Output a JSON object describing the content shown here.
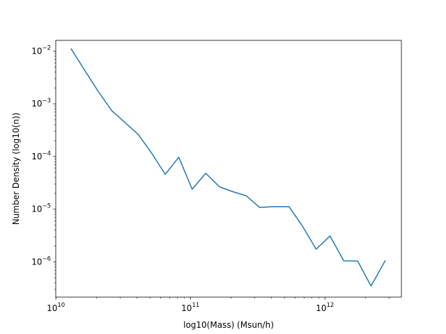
{
  "chart_data": {
    "type": "line",
    "title": "",
    "xlabel": "log10(Mass) (Msun/h)",
    "ylabel": "Number Density (log10(n))",
    "xscale": "log",
    "yscale": "log",
    "xlim": [
      9980000000.0,
      3700000000000.0
    ],
    "ylim": [
      2.15e-07,
      0.016
    ],
    "grid": false,
    "legend": "none",
    "x_ticks": [
      {
        "value": 10000000000.0,
        "base": "10",
        "exp": "10"
      },
      {
        "value": 100000000000.0,
        "base": "10",
        "exp": "11"
      },
      {
        "value": 1000000000000.0,
        "base": "10",
        "exp": "12"
      }
    ],
    "y_ticks": [
      {
        "value": 0.01,
        "base": "10",
        "exp": "−2"
      },
      {
        "value": 0.001,
        "base": "10",
        "exp": "−3"
      },
      {
        "value": 0.0001,
        "base": "10",
        "exp": "−4"
      },
      {
        "value": 1e-05,
        "base": "10",
        "exp": "−5"
      },
      {
        "value": 1e-06,
        "base": "10",
        "exp": "−6"
      }
    ],
    "series": [
      {
        "color": "#1f77b4",
        "x": [
          13000000000.0,
          16500000000.0,
          20700000000.0,
          26000000000.0,
          32700000000.0,
          41100000000.0,
          51600000000.0,
          65000000000.0,
          82000000000.0,
          103000000000.0,
          130000000000.0,
          165000000000.0,
          207000000000.0,
          260000000000.0,
          327000000000.0,
          411000000000.0,
          540000000000.0,
          680000000000.0,
          860000000000.0,
          1090000000000.0,
          1380000000000.0,
          1750000000000.0,
          2200000000000.0,
          2800000000000.0
        ],
        "y": [
          0.011,
          0.0042,
          0.0017,
          0.00074,
          0.00044,
          0.00026,
          0.000115,
          4.6e-05,
          9.7e-05,
          2.4e-05,
          4.8e-05,
          2.65e-05,
          2.15e-05,
          1.8e-05,
          1.08e-05,
          1.12e-05,
          1.12e-05,
          4.8e-06,
          1.75e-06,
          3.1e-06,
          1.05e-06,
          1.04e-06,
          3.5e-07,
          1.05e-06
        ]
      }
    ]
  }
}
